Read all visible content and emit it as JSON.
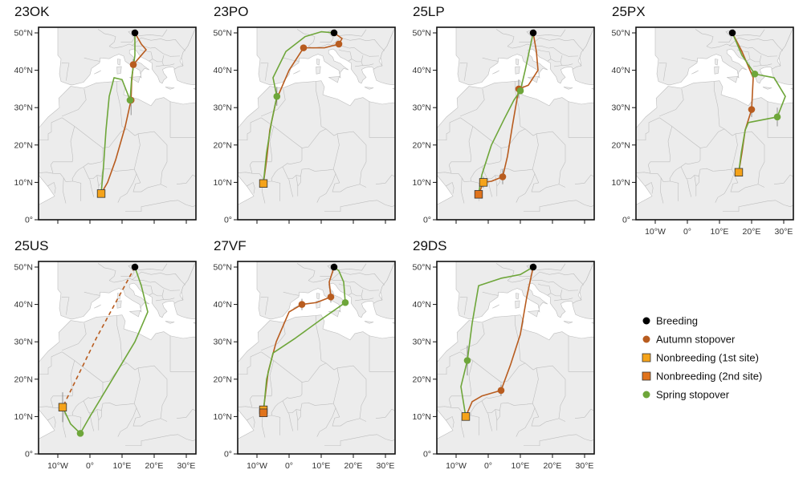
{
  "figure_type": "map",
  "units": {
    "lon": "degrees E",
    "lat": "degrees N"
  },
  "extent": {
    "lon": [
      -16,
      33
    ],
    "lat": [
      0,
      51.5
    ]
  },
  "lat_ticks": [
    {
      "value": 0,
      "label": "0°"
    },
    {
      "value": 10,
      "label": "10°N"
    },
    {
      "value": 20,
      "label": "20°N"
    },
    {
      "value": 30,
      "label": "30°N"
    },
    {
      "value": 40,
      "label": "40°N"
    },
    {
      "value": 50,
      "label": "50°N"
    }
  ],
  "lon_ticks": [
    {
      "value": -10,
      "label": "10°W"
    },
    {
      "value": 0,
      "label": "0°"
    },
    {
      "value": 10,
      "label": "10°E"
    },
    {
      "value": 20,
      "label": "20°E"
    },
    {
      "value": 30,
      "label": "30°E"
    }
  ],
  "colors": {
    "breeding": "#000000",
    "autumn": "#b85c1f",
    "nonbreeding_1": "#f5a31a",
    "nonbreeding_2": "#e0731c",
    "spring": "#6ea63a",
    "land": "#ececec",
    "sea": "#ffffff",
    "border": "#bdbdbd"
  },
  "legend": [
    {
      "key": "breeding",
      "label": "Breeding",
      "marker": "circle"
    },
    {
      "key": "autumn",
      "label": "Autumn stopover",
      "marker": "circle"
    },
    {
      "key": "nonbreeding_1",
      "label": "Nonbreeding (1st site)",
      "marker": "square"
    },
    {
      "key": "nonbreeding_2",
      "label": "Nonbreeding (2nd site)",
      "marker": "square"
    },
    {
      "key": "spring",
      "label": "Spring stopover",
      "marker": "circle"
    }
  ],
  "panels": [
    {
      "id": "23OK",
      "breeding": [
        14,
        50
      ],
      "autumn_stops": [
        [
          13.5,
          41.5
        ],
        [
          12.8,
          32
        ]
      ],
      "nonbreeding": [
        {
          "pos": [
            3.5,
            7
          ],
          "site": 1
        }
      ],
      "spring_stops": [
        [
          12.5,
          32
        ]
      ],
      "autumn_track": [
        [
          14,
          50
        ],
        [
          16,
          47
        ],
        [
          17.5,
          45.5
        ],
        [
          16,
          44
        ],
        [
          13.5,
          41.5
        ],
        [
          13,
          37
        ],
        [
          12.8,
          32
        ],
        [
          11,
          25
        ],
        [
          8,
          16
        ],
        [
          5.5,
          10
        ],
        [
          3.5,
          7
        ]
      ],
      "spring_track": [
        [
          3.5,
          7
        ],
        [
          4.2,
          14
        ],
        [
          5,
          24
        ],
        [
          6,
          33
        ],
        [
          7.5,
          38
        ],
        [
          10,
          37.5
        ],
        [
          12.5,
          32
        ],
        [
          13,
          38
        ],
        [
          14,
          44
        ],
        [
          14,
          50
        ]
      ],
      "autumn_dashed": false,
      "error_bars": [
        [
          12.8,
          32,
          4
        ],
        [
          13.5,
          41.5,
          1.5
        ]
      ]
    },
    {
      "id": "23PO",
      "breeding": [
        14,
        50
      ],
      "autumn_stops": [
        [
          4.5,
          46
        ],
        [
          15.5,
          47
        ]
      ],
      "nonbreeding": [
        {
          "pos": [
            -8,
            9.7
          ],
          "site": 1
        }
      ],
      "spring_stops": [
        [
          -3.8,
          33
        ]
      ],
      "autumn_track": [
        [
          14,
          50
        ],
        [
          16.5,
          48.5
        ],
        [
          15.5,
          47
        ],
        [
          11,
          46
        ],
        [
          4.5,
          46
        ],
        [
          0,
          40
        ],
        [
          -4,
          32
        ],
        [
          -6,
          24
        ],
        [
          -7,
          16
        ],
        [
          -8,
          9.7
        ]
      ],
      "spring_track": [
        [
          -8,
          9.7
        ],
        [
          -7,
          18
        ],
        [
          -5.5,
          26
        ],
        [
          -3.8,
          33
        ],
        [
          -5,
          38
        ],
        [
          -1,
          45
        ],
        [
          5,
          49
        ],
        [
          10,
          50.3
        ],
        [
          14,
          50
        ]
      ],
      "autumn_dashed": false,
      "error_bars": [
        [
          -3.8,
          33,
          2.5
        ]
      ]
    },
    {
      "id": "25LP",
      "breeding": [
        14,
        50
      ],
      "autumn_stops": [
        [
          9.5,
          35
        ],
        [
          4.5,
          11.5
        ]
      ],
      "nonbreeding": [
        {
          "pos": [
            -1.5,
            10
          ],
          "site": 1
        },
        {
          "pos": [
            -3,
            6.8
          ],
          "site": 2
        }
      ],
      "spring_stops": [
        [
          10,
          34.5
        ]
      ],
      "autumn_track": [
        [
          14,
          50
        ],
        [
          15,
          45
        ],
        [
          15.5,
          40
        ],
        [
          12.5,
          36
        ],
        [
          9.5,
          35
        ],
        [
          7.5,
          25
        ],
        [
          6,
          17
        ],
        [
          4.5,
          11.5
        ],
        [
          1,
          10.3
        ],
        [
          -1.5,
          10
        ],
        [
          -3,
          6.8
        ]
      ],
      "spring_track": [
        [
          -3,
          6.8
        ],
        [
          -2,
          12
        ],
        [
          1,
          20
        ],
        [
          5,
          27
        ],
        [
          8,
          32
        ],
        [
          10,
          34.5
        ],
        [
          11.5,
          40
        ],
        [
          13,
          46
        ],
        [
          14,
          50
        ]
      ],
      "autumn_dashed": false,
      "error_bars": [
        [
          9.5,
          35,
          2.5
        ],
        [
          4.5,
          11.5,
          2
        ],
        [
          -1.5,
          10,
          1.5
        ]
      ]
    },
    {
      "id": "25PX",
      "breeding": [
        14,
        50
      ],
      "autumn_stops": [
        [
          20,
          29.5
        ]
      ],
      "nonbreeding": [
        {
          "pos": [
            16,
            12.7
          ],
          "site": 1
        }
      ],
      "spring_stops": [
        [
          21,
          39
        ],
        [
          28,
          27.5
        ]
      ],
      "autumn_track": [
        [
          14,
          50
        ],
        [
          17,
          45
        ],
        [
          20.5,
          38
        ],
        [
          20,
          29.5
        ],
        [
          18,
          24
        ],
        [
          17,
          18
        ],
        [
          16,
          12.7
        ]
      ],
      "spring_track": [
        [
          16,
          12.7
        ],
        [
          16.8,
          18
        ],
        [
          18,
          24
        ],
        [
          19,
          26
        ],
        [
          28,
          27.5
        ],
        [
          30.5,
          33
        ],
        [
          27,
          38
        ],
        [
          21,
          39
        ],
        [
          17,
          44
        ],
        [
          14,
          50
        ]
      ],
      "autumn_dashed": false,
      "error_bars": [
        [
          20,
          29.5,
          2
        ],
        [
          28,
          27.5,
          2.5
        ]
      ]
    },
    {
      "id": "25US",
      "breeding": [
        14,
        50
      ],
      "autumn_stops": [],
      "nonbreeding": [
        {
          "pos": [
            -8.5,
            12.5
          ],
          "site": 1
        }
      ],
      "spring_stops": [
        [
          -3,
          5.5
        ]
      ],
      "autumn_track": [
        [
          14,
          50
        ],
        [
          2,
          31
        ],
        [
          -8.5,
          12.5
        ]
      ],
      "spring_track": [
        [
          -8.5,
          12.5
        ],
        [
          -6,
          8
        ],
        [
          -3,
          5.5
        ],
        [
          0,
          10
        ],
        [
          7,
          20
        ],
        [
          14,
          30
        ],
        [
          18,
          38
        ],
        [
          16,
          45
        ],
        [
          14,
          50
        ]
      ],
      "autumn_dashed": true,
      "error_bars": [
        [
          -8.5,
          12.5,
          4
        ]
      ]
    },
    {
      "id": "27VF",
      "breeding": [
        14,
        50
      ],
      "autumn_stops": [
        [
          4,
          40
        ],
        [
          13,
          42
        ]
      ],
      "nonbreeding": [
        {
          "pos": [
            -8,
            11.8
          ],
          "site": 1
        },
        {
          "pos": [
            -8,
            11
          ],
          "site": 2
        }
      ],
      "spring_stops": [
        [
          17.5,
          40.5
        ]
      ],
      "autumn_track": [
        [
          14,
          50
        ],
        [
          12.5,
          46
        ],
        [
          13,
          42
        ],
        [
          8.5,
          40.5
        ],
        [
          4,
          40
        ],
        [
          0,
          38
        ],
        [
          -4,
          30
        ],
        [
          -6.5,
          22
        ],
        [
          -7.5,
          15
        ],
        [
          -8,
          11.8
        ]
      ],
      "spring_track": [
        [
          -8,
          11
        ],
        [
          -7,
          20
        ],
        [
          -5,
          27
        ],
        [
          2,
          31
        ],
        [
          10,
          36
        ],
        [
          17.5,
          40.5
        ],
        [
          17,
          46
        ],
        [
          15.5,
          49
        ],
        [
          14,
          50
        ]
      ],
      "autumn_dashed": false,
      "error_bars": [
        [
          4,
          40,
          1.5
        ],
        [
          13,
          42,
          1.5
        ]
      ]
    },
    {
      "id": "29DS",
      "breeding": [
        14,
        50
      ],
      "autumn_stops": [
        [
          4,
          17
        ]
      ],
      "nonbreeding": [
        {
          "pos": [
            -7,
            10
          ],
          "site": 1
        }
      ],
      "spring_stops": [
        [
          -6.5,
          25
        ]
      ],
      "autumn_track": [
        [
          14,
          50
        ],
        [
          12,
          42
        ],
        [
          10,
          32
        ],
        [
          7,
          24
        ],
        [
          4,
          17
        ],
        [
          -2,
          15.5
        ],
        [
          -5,
          14
        ],
        [
          -7,
          10
        ]
      ],
      "spring_track": [
        [
          -7,
          10
        ],
        [
          -8.5,
          18
        ],
        [
          -6.5,
          25
        ],
        [
          -5,
          35
        ],
        [
          -3,
          45
        ],
        [
          4,
          47
        ],
        [
          10,
          48
        ],
        [
          14,
          50
        ]
      ],
      "autumn_dashed": false,
      "error_bars": [
        [
          -6.5,
          25,
          4
        ],
        [
          4,
          17,
          1.5
        ]
      ]
    }
  ]
}
